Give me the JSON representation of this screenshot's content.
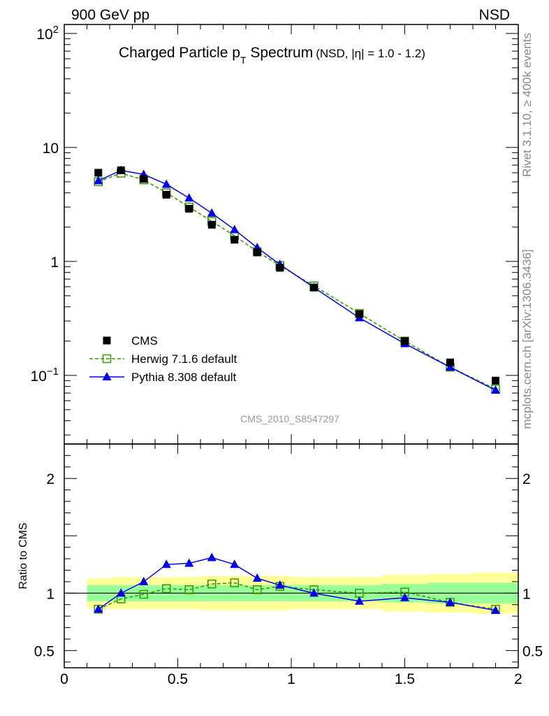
{
  "header": {
    "left_label": "900 GeV pp",
    "right_label": "NSD",
    "side_label_top": "Rivet 3.1.10, ≥ 400k events",
    "side_label_bottom": "mcplots.cern.ch [arXiv:1306.3436]",
    "analysis_id": "CMS_2010_S8547297"
  },
  "colors": {
    "cms": "#000000",
    "herwig": "#339900",
    "pythia": "#0000ee",
    "band_outer": "#ffff99",
    "band_inner": "#99ff99"
  },
  "chart_data": [
    {
      "type": "line",
      "title_main": "Charged Particle p",
      "title_sub": "T",
      "title_main_tail": " Spectrum",
      "title_note": "(NSD, |η| = 1.0 - 1.2)",
      "xlim": [
        0,
        2
      ],
      "ylim": [
        0.025,
        120
      ],
      "yscale": "log",
      "x_tick_labels": [
        "0",
        "0.5",
        "1",
        "1.5",
        "2"
      ],
      "y_tick_labels": [
        {
          "value": 0.1,
          "base": "10",
          "exp": "−1"
        },
        {
          "value": 1,
          "base": "1",
          "exp": ""
        },
        {
          "value": 10,
          "base": "10",
          "exp": ""
        },
        {
          "value": 100,
          "base": "10",
          "exp": "2"
        }
      ],
      "legend_position": "bottom-left",
      "series": [
        {
          "name": "CMS",
          "marker": "filled-square",
          "x": [
            0.15,
            0.25,
            0.35,
            0.45,
            0.55,
            0.65,
            0.75,
            0.85,
            0.95,
            1.1,
            1.3,
            1.5,
            1.7,
            1.9
          ],
          "y": [
            6.0,
            6.3,
            5.3,
            3.85,
            2.9,
            2.1,
            1.55,
            1.2,
            0.88,
            0.59,
            0.345,
            0.2,
            0.13,
            0.09
          ]
        },
        {
          "name": "Herwig 7.1.6 default",
          "marker": "open-square",
          "line": "dashed",
          "x": [
            0.15,
            0.25,
            0.35,
            0.45,
            0.55,
            0.65,
            0.75,
            0.85,
            0.95,
            1.1,
            1.3,
            1.5,
            1.7,
            1.9
          ],
          "y": [
            5.0,
            5.95,
            5.2,
            4.0,
            3.0,
            2.25,
            1.68,
            1.22,
            0.92,
            0.61,
            0.35,
            0.2,
            0.118,
            0.076
          ]
        },
        {
          "name": "Pythia 8.308 default",
          "marker": "filled-triangle",
          "line": "solid",
          "x": [
            0.15,
            0.25,
            0.35,
            0.45,
            0.55,
            0.65,
            0.75,
            0.85,
            0.95,
            1.1,
            1.3,
            1.5,
            1.7,
            1.9
          ],
          "y": [
            5.1,
            6.3,
            5.8,
            4.75,
            3.6,
            2.65,
            1.9,
            1.32,
            0.94,
            0.59,
            0.32,
            0.19,
            0.118,
            0.074
          ]
        }
      ]
    },
    {
      "type": "line",
      "ylabel": "Ratio to CMS",
      "xlim": [
        0,
        2
      ],
      "ylim": [
        0.35,
        2.3
      ],
      "y_tick_labels": [
        {
          "value": 0.5,
          "label": "0.5"
        },
        {
          "value": 1,
          "label": "1"
        },
        {
          "value": 2,
          "label": "2"
        }
      ],
      "reference_line": 1,
      "bands": {
        "bin_edges": [
          0.1,
          0.2,
          0.3,
          0.4,
          0.5,
          0.6,
          0.7,
          0.8,
          0.9,
          1.0,
          1.2,
          1.4,
          1.6,
          1.8,
          2.0
        ],
        "outer_low": [
          0.87,
          0.86,
          0.86,
          0.86,
          0.86,
          0.85,
          0.85,
          0.85,
          0.85,
          0.86,
          0.86,
          0.84,
          0.83,
          0.82
        ],
        "outer_high": [
          1.13,
          1.14,
          1.14,
          1.14,
          1.14,
          1.15,
          1.15,
          1.15,
          1.15,
          1.14,
          1.14,
          1.16,
          1.17,
          1.18
        ],
        "inner_low": [
          0.93,
          0.93,
          0.93,
          0.93,
          0.93,
          0.93,
          0.93,
          0.93,
          0.93,
          0.93,
          0.93,
          0.92,
          0.91,
          0.91
        ],
        "inner_high": [
          1.07,
          1.07,
          1.07,
          1.07,
          1.07,
          1.07,
          1.07,
          1.07,
          1.07,
          1.07,
          1.07,
          1.08,
          1.09,
          1.09
        ]
      },
      "series": [
        {
          "name": "Herwig 7.1.6 default",
          "marker": "open-square",
          "line": "dashed",
          "x": [
            0.15,
            0.25,
            0.35,
            0.45,
            0.55,
            0.65,
            0.75,
            0.85,
            0.95,
            1.1,
            1.3,
            1.5,
            1.7,
            1.9
          ],
          "y": [
            0.86,
            0.95,
            0.99,
            1.04,
            1.03,
            1.08,
            1.09,
            1.03,
            1.06,
            1.03,
            1.0,
            1.01,
            0.92,
            0.86
          ]
        },
        {
          "name": "Pythia 8.308 default",
          "marker": "filled-triangle",
          "line": "solid",
          "x": [
            0.15,
            0.25,
            0.35,
            0.45,
            0.55,
            0.65,
            0.75,
            0.85,
            0.95,
            1.1,
            1.3,
            1.5,
            1.7,
            1.9
          ],
          "y": [
            0.86,
            1.0,
            1.1,
            1.25,
            1.26,
            1.31,
            1.25,
            1.13,
            1.07,
            1.0,
            0.93,
            0.96,
            0.92,
            0.85
          ]
        }
      ]
    }
  ]
}
